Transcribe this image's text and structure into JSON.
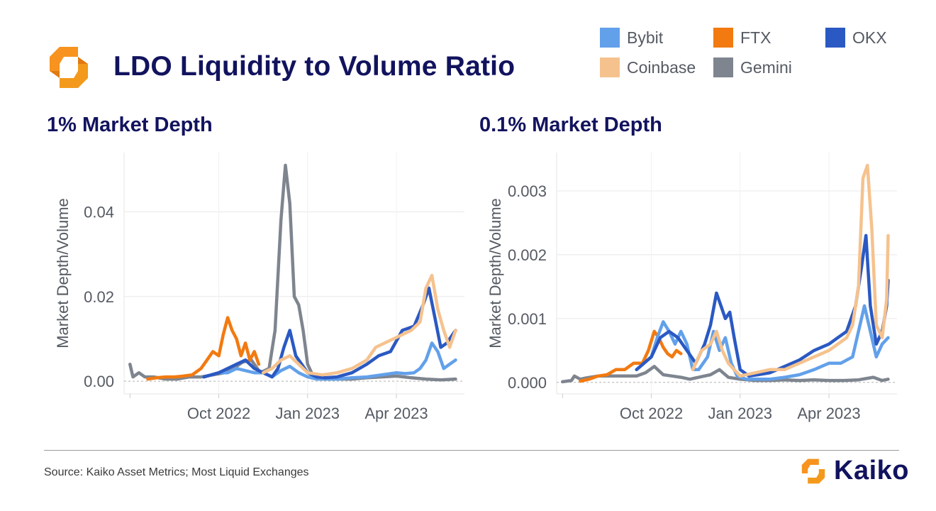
{
  "title": "LDO Liquidity to Volume Ratio",
  "colors": {
    "Bybit": "#62a0ea",
    "Coinbase": "#f5c28e",
    "FTX": "#f27a10",
    "Gemini": "#7e858f",
    "OKX": "#2b59c3",
    "title": "#12135e",
    "logo_orange": "#f7931e"
  },
  "legend": [
    {
      "name": "Bybit",
      "icon": "legend-swatch"
    },
    {
      "name": "Coinbase",
      "icon": "legend-swatch"
    },
    {
      "name": "FTX",
      "icon": "legend-swatch"
    },
    {
      "name": "Gemini",
      "icon": "legend-swatch"
    },
    {
      "name": "OKX",
      "icon": "legend-swatch"
    }
  ],
  "chart_data": [
    {
      "type": "line",
      "title": "1% Market Depth",
      "xlabel": "",
      "ylabel": "Market Depth/Volume",
      "x_unit": "months since Jul 2022",
      "xlim": [
        -0.2,
        11.3
      ],
      "ylim": [
        -0.003,
        0.054
      ],
      "yticks": [
        0,
        0.02,
        0.04
      ],
      "ytick_labels": [
        "0.00",
        "0.02",
        "0.04"
      ],
      "xticks": [
        3,
        6,
        9
      ],
      "xtick_labels": [
        "Oct 2022",
        "Jan 2023",
        "Apr 2023"
      ],
      "grid": true,
      "series": [
        {
          "name": "Gemini",
          "x": [
            0,
            0.1,
            0.3,
            0.5,
            0.8,
            1.2,
            1.6,
            2.0,
            2.4,
            2.8,
            3.2,
            3.5,
            3.8,
            4.1,
            4.4,
            4.7,
            4.9,
            5.1,
            5.25,
            5.4,
            5.55,
            5.7,
            5.85,
            6.0,
            6.2,
            6.5,
            7.0,
            7.5,
            8.0,
            8.5,
            9.0,
            9.5,
            10.0,
            10.5,
            11.0
          ],
          "y": [
            0.004,
            0.001,
            0.002,
            0.001,
            0.001,
            0.0005,
            0.0005,
            0.001,
            0.001,
            0.0015,
            0.002,
            0.003,
            0.0045,
            0.005,
            0.002,
            0.003,
            0.012,
            0.038,
            0.051,
            0.042,
            0.02,
            0.018,
            0.012,
            0.004,
            0.001,
            0.0005,
            0.0005,
            0.0005,
            0.0008,
            0.001,
            0.0012,
            0.0008,
            0.0005,
            0.0003,
            0.0005
          ]
        },
        {
          "name": "FTX",
          "x": [
            0.6,
            0.9,
            1.2,
            1.5,
            1.8,
            2.1,
            2.4,
            2.6,
            2.8,
            3.0,
            3.15,
            3.3,
            3.45,
            3.6,
            3.75,
            3.9,
            4.05,
            4.2,
            4.35
          ],
          "y": [
            0.0005,
            0.0008,
            0.001,
            0.001,
            0.0012,
            0.0015,
            0.003,
            0.005,
            0.007,
            0.006,
            0.011,
            0.015,
            0.012,
            0.01,
            0.006,
            0.009,
            0.005,
            0.007,
            0.004
          ]
        },
        {
          "name": "Bybit",
          "x": [
            2.5,
            3.0,
            3.3,
            3.6,
            3.9,
            4.2,
            4.5,
            4.8,
            5.1,
            5.4,
            5.7,
            6.0,
            6.3,
            6.6,
            7.0,
            7.5,
            8.0,
            8.5,
            9.0,
            9.3,
            9.6,
            9.8,
            10.0,
            10.2,
            10.4,
            10.6,
            10.8,
            11.0
          ],
          "y": [
            0.001,
            0.002,
            0.002,
            0.003,
            0.0025,
            0.002,
            0.002,
            0.001,
            0.0025,
            0.0035,
            0.002,
            0.001,
            0.0005,
            0.0005,
            0.0005,
            0.0008,
            0.001,
            0.0015,
            0.002,
            0.0018,
            0.002,
            0.003,
            0.005,
            0.009,
            0.007,
            0.003,
            0.004,
            0.005
          ]
        },
        {
          "name": "OKX",
          "x": [
            2.5,
            3.0,
            3.3,
            3.6,
            3.9,
            4.2,
            4.5,
            4.8,
            5.0,
            5.2,
            5.4,
            5.6,
            5.8,
            6.0,
            6.3,
            6.6,
            7.0,
            7.5,
            8.0,
            8.4,
            8.8,
            9.2,
            9.6,
            9.9,
            10.1,
            10.3,
            10.5,
            10.7,
            10.9,
            11.0
          ],
          "y": [
            0.001,
            0.002,
            0.003,
            0.004,
            0.005,
            0.003,
            0.002,
            0.001,
            0.003,
            0.008,
            0.012,
            0.006,
            0.004,
            0.002,
            0.001,
            0.0008,
            0.001,
            0.002,
            0.004,
            0.006,
            0.007,
            0.012,
            0.013,
            0.018,
            0.022,
            0.015,
            0.008,
            0.009,
            0.011,
            0.012
          ]
        },
        {
          "name": "Coinbase",
          "x": [
            4.5,
            4.8,
            5.1,
            5.4,
            5.7,
            6.0,
            6.5,
            7.0,
            7.5,
            8.0,
            8.3,
            8.6,
            8.9,
            9.2,
            9.5,
            9.8,
            10.0,
            10.2,
            10.4,
            10.6,
            10.8,
            11.0
          ],
          "y": [
            0.002,
            0.003,
            0.005,
            0.006,
            0.004,
            0.002,
            0.0015,
            0.002,
            0.003,
            0.005,
            0.008,
            0.009,
            0.01,
            0.011,
            0.012,
            0.014,
            0.022,
            0.025,
            0.017,
            0.012,
            0.008,
            0.012
          ]
        }
      ]
    },
    {
      "type": "line",
      "title": "0.1% Market Depth",
      "xlabel": "",
      "ylabel": "Market Depth/Volume",
      "x_unit": "months since Jul 2022",
      "xlim": [
        -0.2,
        11.3
      ],
      "ylim": [
        -0.00018,
        0.0036
      ],
      "yticks": [
        0,
        0.001,
        0.002,
        0.003
      ],
      "ytick_labels": [
        "0.000",
        "0.001",
        "0.002",
        "0.003"
      ],
      "xticks": [
        3,
        6,
        9
      ],
      "xtick_labels": [
        "Oct 2022",
        "Jan 2023",
        "Apr 2023"
      ],
      "grid": true,
      "series": [
        {
          "name": "Gemini",
          "x": [
            0,
            0.3,
            0.4,
            0.6,
            0.8,
            1.2,
            1.6,
            2.0,
            2.5,
            2.8,
            3.1,
            3.4,
            3.7,
            4.0,
            4.3,
            4.6,
            5.0,
            5.3,
            5.6,
            6.0,
            6.5,
            7.0,
            7.5,
            8.0,
            8.5,
            9.0,
            9.5,
            10.0,
            10.5,
            10.8,
            11.0
          ],
          "y": [
            1e-05,
            3e-05,
            0.0001,
            5e-05,
            7e-05,
            0.0001,
            0.0001,
            0.0001,
            0.0001,
            0.00015,
            0.00025,
            0.00012,
            0.0001,
            8e-05,
            5e-05,
            8e-05,
            0.00012,
            0.0002,
            8e-05,
            5e-05,
            3e-05,
            3e-05,
            4e-05,
            3e-05,
            4e-05,
            3e-05,
            3e-05,
            4e-05,
            8e-05,
            3e-05,
            5e-05
          ]
        },
        {
          "name": "FTX",
          "x": [
            0.6,
            0.9,
            1.2,
            1.5,
            1.8,
            2.1,
            2.4,
            2.7,
            2.9,
            3.1,
            3.25,
            3.4,
            3.55,
            3.7,
            3.85,
            4.0
          ],
          "y": [
            2e-05,
            5e-05,
            0.0001,
            0.00012,
            0.0002,
            0.0002,
            0.0003,
            0.0003,
            0.0005,
            0.0008,
            0.0007,
            0.00055,
            0.00045,
            0.0004,
            0.0005,
            0.00045
          ]
        },
        {
          "name": "Bybit",
          "x": [
            2.5,
            3.0,
            3.2,
            3.4,
            3.6,
            3.8,
            4.0,
            4.2,
            4.4,
            4.6,
            4.9,
            5.1,
            5.3,
            5.5,
            5.7,
            5.9,
            6.2,
            6.6,
            7.0,
            7.5,
            8.0,
            8.5,
            9.0,
            9.4,
            9.8,
            10.0,
            10.2,
            10.4,
            10.6,
            10.8,
            11.0
          ],
          "y": [
            0.0002,
            0.0004,
            0.0007,
            0.00095,
            0.0008,
            0.0006,
            0.0008,
            0.0006,
            0.0002,
            0.0002,
            0.0004,
            0.0008,
            0.0005,
            0.0007,
            0.0003,
            0.0001,
            5e-05,
            5e-05,
            5e-05,
            8e-05,
            0.00012,
            0.0002,
            0.0003,
            0.0003,
            0.0004,
            0.0008,
            0.0012,
            0.0008,
            0.0004,
            0.0006,
            0.0007
          ]
        },
        {
          "name": "OKX",
          "x": [
            2.5,
            3.0,
            3.3,
            3.6,
            3.9,
            4.2,
            4.5,
            4.8,
            5.0,
            5.2,
            5.35,
            5.5,
            5.65,
            5.8,
            6.0,
            6.3,
            6.6,
            7.0,
            7.5,
            8.0,
            8.5,
            9.0,
            9.3,
            9.6,
            9.9,
            10.1,
            10.25,
            10.4,
            10.6,
            10.8,
            10.95,
            11.0
          ],
          "y": [
            0.0002,
            0.0004,
            0.0007,
            0.0008,
            0.0007,
            0.0005,
            0.0003,
            0.0006,
            0.0009,
            0.0014,
            0.0012,
            0.001,
            0.0011,
            0.0007,
            0.0002,
            0.0001,
            0.00012,
            0.00015,
            0.00025,
            0.00035,
            0.0005,
            0.0006,
            0.0007,
            0.0008,
            0.0012,
            0.0018,
            0.0023,
            0.0012,
            0.0006,
            0.0008,
            0.0012,
            0.0016
          ]
        },
        {
          "name": "Coinbase",
          "x": [
            4.4,
            4.7,
            5.0,
            5.2,
            5.4,
            5.6,
            5.8,
            6.0,
            6.5,
            7.0,
            7.5,
            8.0,
            8.5,
            9.0,
            9.3,
            9.6,
            9.8,
            10.0,
            10.15,
            10.3,
            10.45,
            10.6,
            10.8,
            10.95,
            11.0
          ],
          "y": [
            0.0002,
            0.0005,
            0.0006,
            0.0008,
            0.0005,
            0.0003,
            0.0002,
            0.0001,
            0.00015,
            0.0002,
            0.0002,
            0.0003,
            0.0004,
            0.0005,
            0.0006,
            0.0007,
            0.0009,
            0.0015,
            0.0032,
            0.0034,
            0.0024,
            0.0009,
            0.0007,
            0.0013,
            0.0023
          ]
        }
      ]
    }
  ],
  "source": "Source: Kaiko Asset Metrics; Most Liquid Exchanges",
  "brand": "Kaiko"
}
